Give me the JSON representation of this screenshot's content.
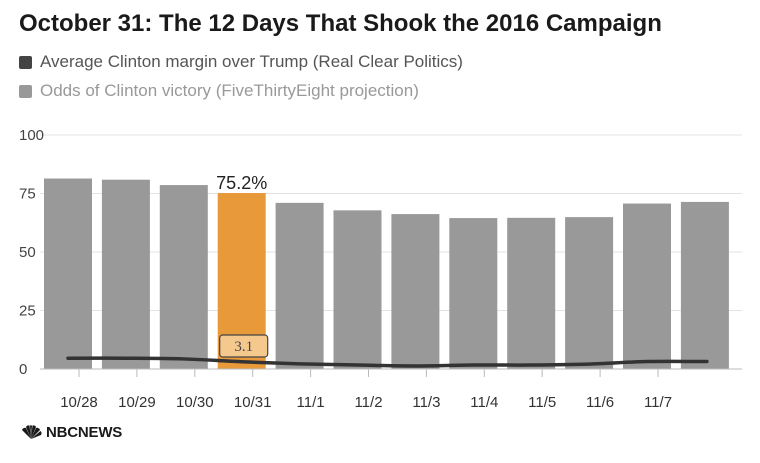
{
  "title": "October 31: The 12 Days That Shook the 2016 Campaign",
  "legend": {
    "margin_label": "Average Clinton margin over Trump (Real Clear Politics)",
    "margin_color": "#444444",
    "odds_label": "Odds of Clinton victory (FiveThirtyEight projection)",
    "odds_color": "#999999"
  },
  "highlight": {
    "index": 3,
    "color": "#E8993A",
    "odds_label": "75.2%",
    "margin_label": "3.1"
  },
  "footer": {
    "logo_text": "NBCNEWS",
    "logo_icon": "peacock-icon"
  },
  "chart_data": {
    "type": "bar",
    "categories": [
      "10/28",
      "10/29",
      "10/30",
      "10/31",
      "11/1",
      "11/2",
      "11/3",
      "11/4",
      "11/5",
      "11/6",
      "11/7",
      ""
    ],
    "series": [
      {
        "name": "Odds of Clinton victory (FiveThirtyEight projection)",
        "type": "bar",
        "values": [
          81.4,
          80.9,
          78.6,
          75.2,
          71.0,
          67.8,
          66.2,
          64.5,
          64.6,
          64.9,
          70.7,
          71.4
        ]
      },
      {
        "name": "Average Clinton margin over Trump (Real Clear Politics)",
        "type": "line",
        "values": [
          4.6,
          4.6,
          4.3,
          3.1,
          2.2,
          1.7,
          1.3,
          1.7,
          1.7,
          2.1,
          3.2,
          3.2
        ]
      }
    ],
    "yticks": [
      0,
      25,
      50,
      75,
      100
    ],
    "ylim": [
      0,
      100
    ],
    "bar_color": "#999999",
    "line_color": "#333333"
  }
}
